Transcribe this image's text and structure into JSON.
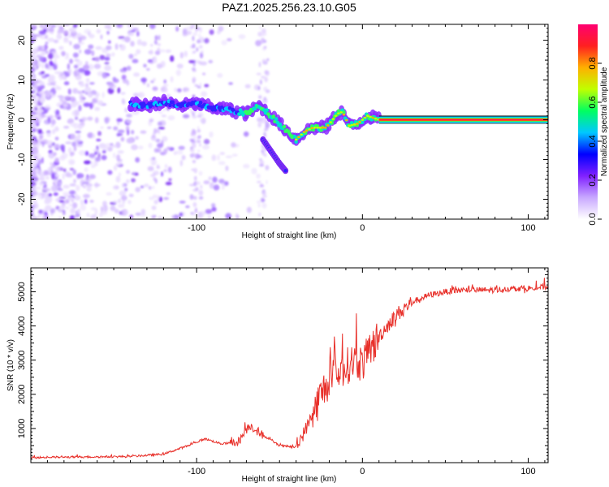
{
  "title": "PAZ1.2025.256.23.10.G05",
  "chart_data": [
    {
      "type": "heatmap",
      "xlabel": "Height of straight line (km)",
      "ylabel": "Frequency (Hz)",
      "xlim": [
        -200,
        112
      ],
      "ylim": [
        -25,
        24
      ],
      "xticks": [
        "-100",
        "0",
        "100"
      ],
      "yticks": [
        "-20",
        "-10",
        "0",
        "10",
        "20"
      ],
      "colorbar": {
        "label": "Normalized spectral amplitude",
        "range": [
          0,
          1
        ],
        "ticks": [
          "0.0",
          "0.2",
          "0.4",
          "0.6",
          "0.8"
        ],
        "colors": [
          "#ffffff",
          "#c8a8ff",
          "#8020ff",
          "#0000ff",
          "#00c8ff",
          "#00ff60",
          "#c0ff00",
          "#ffb000",
          "#ff2020",
          "#ff0070"
        ]
      },
      "ridge": [
        {
          "x": -140,
          "y": 4.0
        },
        {
          "x": -130,
          "y": 3.5
        },
        {
          "x": -120,
          "y": 4.5
        },
        {
          "x": -110,
          "y": 3.5
        },
        {
          "x": -100,
          "y": 4.0
        },
        {
          "x": -90,
          "y": 3.0
        },
        {
          "x": -80,
          "y": 2.5
        },
        {
          "x": -70,
          "y": 1.5
        },
        {
          "x": -62,
          "y": 3.5
        },
        {
          "x": -55,
          "y": 1.0
        },
        {
          "x": -50,
          "y": -1.0
        },
        {
          "x": -45,
          "y": -3.0
        },
        {
          "x": -40,
          "y": -5.0
        },
        {
          "x": -35,
          "y": -3.0
        },
        {
          "x": -30,
          "y": -2.0
        },
        {
          "x": -22,
          "y": -2.0
        },
        {
          "x": -15,
          "y": 1.5
        },
        {
          "x": -12,
          "y": 2.0
        },
        {
          "x": -8,
          "y": -1.5
        },
        {
          "x": -3,
          "y": -1.0
        },
        {
          "x": 3,
          "y": 1.0
        },
        {
          "x": 10,
          "y": 0.0
        },
        {
          "x": 112,
          "y": 0.0
        }
      ],
      "branch": [
        {
          "x": -60,
          "y": -5.0
        },
        {
          "x": -55,
          "y": -8.0
        },
        {
          "x": -50,
          "y": -11.0
        },
        {
          "x": -46,
          "y": -13.0
        }
      ]
    },
    {
      "type": "line",
      "xlabel": "Height of straight line (km)",
      "ylabel": "SNR (10 * v/v)",
      "xlim": [
        -200,
        112
      ],
      "ylim": [
        0,
        5700
      ],
      "xticks": [
        "-100",
        "0",
        "100"
      ],
      "yticks": [
        "1000",
        "2000",
        "3000",
        "4000",
        "5000"
      ],
      "color": "#e8302a",
      "series": [
        {
          "x": [
            -200,
            -180,
            -160,
            -140,
            -120,
            -105,
            -95,
            -85,
            -75,
            -68,
            -60,
            -50,
            -40,
            -35,
            -30,
            -25,
            -20,
            -15,
            -10,
            -5,
            0,
            5,
            10,
            15,
            20,
            25,
            30,
            40,
            50,
            60,
            70,
            80,
            90,
            100,
            112
          ],
          "y": [
            150,
            160,
            170,
            180,
            250,
            500,
            700,
            550,
            600,
            1100,
            800,
            500,
            450,
            900,
            1400,
            2000,
            2400,
            2600,
            2800,
            3000,
            2900,
            3300,
            3700,
            4000,
            4300,
            4500,
            4700,
            4900,
            5000,
            5050,
            5050,
            5050,
            5100,
            5100,
            5150
          ]
        }
      ]
    }
  ]
}
